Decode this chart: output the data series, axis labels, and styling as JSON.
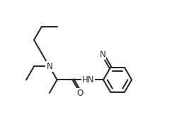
{
  "background": "#ffffff",
  "line_color": "#2a2a2a",
  "line_width": 1.5,
  "text_color": "#2a2a2a",
  "font_size": 8.5,
  "figsize": [
    2.67,
    1.89
  ],
  "dpi": 100,
  "xlim": [
    0,
    10
  ],
  "ylim": [
    0,
    7
  ]
}
